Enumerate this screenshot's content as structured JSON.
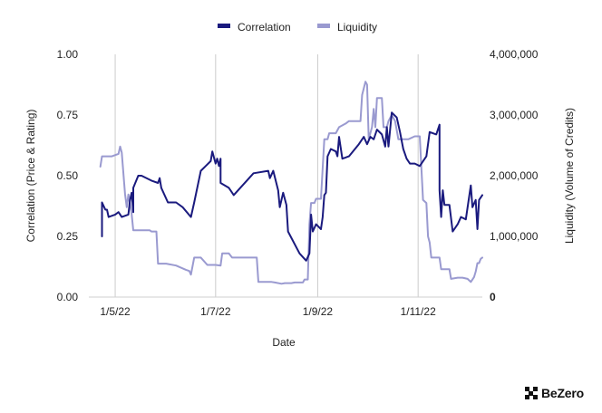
{
  "chart_data": {
    "type": "line",
    "xlabel": "Date",
    "ylabel_left": "Correlation (Price & Rating)",
    "ylabel_right": "Liquidity (Volume of Credits)",
    "xlim": [
      "2022-04-15",
      "2022-12-10"
    ],
    "ylim_left": [
      0,
      1
    ],
    "ylim_right": [
      0,
      4000000
    ],
    "x_ticks": [
      {
        "date": "2022-05-01",
        "label": "1/5/22"
      },
      {
        "date": "2022-07-01",
        "label": "1/7/22"
      },
      {
        "date": "2022-09-01",
        "label": "1/9/22"
      },
      {
        "date": "2022-11-01",
        "label": "1/11/22"
      }
    ],
    "y_ticks_left": [
      {
        "value": 0,
        "label": "0.00"
      },
      {
        "value": 0.25,
        "label": "0.25"
      },
      {
        "value": 0.5,
        "label": "0.50"
      },
      {
        "value": 0.75,
        "label": "0.75"
      },
      {
        "value": 1,
        "label": "1.00"
      }
    ],
    "y_ticks_right": [
      {
        "value": 0,
        "label": "0"
      },
      {
        "value": 1000000,
        "label": "1,000,000"
      },
      {
        "value": 2000000,
        "label": "2,000,000"
      },
      {
        "value": 3000000,
        "label": "3,000,000"
      },
      {
        "value": 4000000,
        "label": "4,000,000"
      }
    ],
    "grid": "vertical",
    "legend_position": "top-center",
    "series": [
      {
        "name": "Correlation",
        "axis": "left",
        "color": "#1a1a7e",
        "points": [
          [
            "2022-04-23",
            0.25
          ],
          [
            "2022-04-23",
            0.39
          ],
          [
            "2022-04-25",
            0.36
          ],
          [
            "2022-04-26",
            0.36
          ],
          [
            "2022-04-27",
            0.33
          ],
          [
            "2022-05-01",
            0.34
          ],
          [
            "2022-05-03",
            0.35
          ],
          [
            "2022-05-05",
            0.33
          ],
          [
            "2022-05-09",
            0.34
          ],
          [
            "2022-05-10",
            0.4
          ],
          [
            "2022-05-11",
            0.43
          ],
          [
            "2022-05-12",
            0.35
          ],
          [
            "2022-05-12",
            0.45
          ],
          [
            "2022-05-15",
            0.5
          ],
          [
            "2022-05-17",
            0.5
          ],
          [
            "2022-05-23",
            0.48
          ],
          [
            "2022-05-27",
            0.47
          ],
          [
            "2022-05-28",
            0.49
          ],
          [
            "2022-05-29",
            0.45
          ],
          [
            "2022-06-02",
            0.39
          ],
          [
            "2022-06-07",
            0.39
          ],
          [
            "2022-06-11",
            0.37
          ],
          [
            "2022-06-16",
            0.33
          ],
          [
            "2022-06-18",
            0.39
          ],
          [
            "2022-06-22",
            0.52
          ],
          [
            "2022-06-25",
            0.54
          ],
          [
            "2022-06-28",
            0.56
          ],
          [
            "2022-06-29",
            0.6
          ],
          [
            "2022-07-01",
            0.55
          ],
          [
            "2022-07-02",
            0.57
          ],
          [
            "2022-07-03",
            0.54
          ],
          [
            "2022-07-04",
            0.57
          ],
          [
            "2022-07-04",
            0.47
          ],
          [
            "2022-07-09",
            0.45
          ],
          [
            "2022-07-12",
            0.42
          ],
          [
            "2022-07-24",
            0.51
          ],
          [
            "2022-08-02",
            0.52
          ],
          [
            "2022-08-03",
            0.49
          ],
          [
            "2022-08-05",
            0.52
          ],
          [
            "2022-08-08",
            0.44
          ],
          [
            "2022-08-09",
            0.37
          ],
          [
            "2022-08-11",
            0.43
          ],
          [
            "2022-08-13",
            0.38
          ],
          [
            "2022-08-14",
            0.27
          ],
          [
            "2022-08-21",
            0.18
          ],
          [
            "2022-08-25",
            0.15
          ],
          [
            "2022-08-27",
            0.18
          ],
          [
            "2022-08-28",
            0.34
          ],
          [
            "2022-08-29",
            0.27
          ],
          [
            "2022-08-31",
            0.3
          ],
          [
            "2022-09-03",
            0.28
          ],
          [
            "2022-09-04",
            0.33
          ],
          [
            "2022-09-05",
            0.42
          ],
          [
            "2022-09-06",
            0.43
          ],
          [
            "2022-09-07",
            0.58
          ],
          [
            "2022-09-09",
            0.61
          ],
          [
            "2022-09-12",
            0.6
          ],
          [
            "2022-09-13",
            0.58
          ],
          [
            "2022-09-14",
            0.66
          ],
          [
            "2022-09-16",
            0.57
          ],
          [
            "2022-09-20",
            0.58
          ],
          [
            "2022-09-26",
            0.63
          ],
          [
            "2022-09-29",
            0.66
          ],
          [
            "2022-10-01",
            0.63
          ],
          [
            "2022-10-03",
            0.66
          ],
          [
            "2022-10-05",
            0.65
          ],
          [
            "2022-10-07",
            0.69
          ],
          [
            "2022-10-10",
            0.67
          ],
          [
            "2022-10-12",
            0.62
          ],
          [
            "2022-10-13",
            0.7
          ],
          [
            "2022-10-14",
            0.62
          ],
          [
            "2022-10-16",
            0.76
          ],
          [
            "2022-10-19",
            0.74
          ],
          [
            "2022-10-21",
            0.68
          ],
          [
            "2022-10-23",
            0.61
          ],
          [
            "2022-10-25",
            0.57
          ],
          [
            "2022-10-27",
            0.55
          ],
          [
            "2022-10-30",
            0.55
          ],
          [
            "2022-11-02",
            0.54
          ],
          [
            "2022-11-06",
            0.58
          ],
          [
            "2022-11-08",
            0.68
          ],
          [
            "2022-11-12",
            0.67
          ],
          [
            "2022-11-14",
            0.71
          ],
          [
            "2022-11-14",
            0.44
          ],
          [
            "2022-11-15",
            0.33
          ],
          [
            "2022-11-16",
            0.44
          ],
          [
            "2022-11-17",
            0.38
          ],
          [
            "2022-11-20",
            0.38
          ],
          [
            "2022-11-22",
            0.27
          ],
          [
            "2022-11-25",
            0.3
          ],
          [
            "2022-11-27",
            0.33
          ],
          [
            "2022-11-30",
            0.32
          ],
          [
            "2022-12-03",
            0.46
          ],
          [
            "2022-12-04",
            0.37
          ],
          [
            "2022-12-06",
            0.4
          ],
          [
            "2022-12-07",
            0.28
          ],
          [
            "2022-12-08",
            0.4
          ],
          [
            "2022-12-10",
            0.42
          ]
        ]
      },
      {
        "name": "Liquidity",
        "axis": "right",
        "color": "#9a9ad0",
        "points": [
          [
            "2022-04-22",
            2150000
          ],
          [
            "2022-04-23",
            2320000
          ],
          [
            "2022-04-29",
            2320000
          ],
          [
            "2022-05-01",
            2340000
          ],
          [
            "2022-05-03",
            2360000
          ],
          [
            "2022-05-04",
            2480000
          ],
          [
            "2022-05-05",
            2380000
          ],
          [
            "2022-05-07",
            1700000
          ],
          [
            "2022-05-08",
            1480000
          ],
          [
            "2022-05-09",
            1690000
          ],
          [
            "2022-05-11",
            1370000
          ],
          [
            "2022-05-12",
            1100000
          ],
          [
            "2022-05-22",
            1100000
          ],
          [
            "2022-05-23",
            1080000
          ],
          [
            "2022-05-26",
            1080000
          ],
          [
            "2022-05-27",
            550000
          ],
          [
            "2022-06-01",
            550000
          ],
          [
            "2022-06-07",
            520000
          ],
          [
            "2022-06-13",
            450000
          ],
          [
            "2022-06-15",
            430000
          ],
          [
            "2022-06-16",
            370000
          ],
          [
            "2022-06-18",
            650000
          ],
          [
            "2022-06-22",
            650000
          ],
          [
            "2022-06-26",
            530000
          ],
          [
            "2022-07-01",
            530000
          ],
          [
            "2022-07-04",
            520000
          ],
          [
            "2022-07-05",
            720000
          ],
          [
            "2022-07-09",
            720000
          ],
          [
            "2022-07-11",
            650000
          ],
          [
            "2022-07-26",
            650000
          ],
          [
            "2022-07-27",
            250000
          ],
          [
            "2022-08-04",
            250000
          ],
          [
            "2022-08-06",
            240000
          ],
          [
            "2022-08-10",
            220000
          ],
          [
            "2022-08-12",
            230000
          ],
          [
            "2022-08-16",
            230000
          ],
          [
            "2022-08-18",
            240000
          ],
          [
            "2022-08-23",
            240000
          ],
          [
            "2022-08-24",
            290000
          ],
          [
            "2022-08-26",
            290000
          ],
          [
            "2022-08-27",
            1200000
          ],
          [
            "2022-08-28",
            1550000
          ],
          [
            "2022-08-30",
            1550000
          ],
          [
            "2022-08-31",
            1620000
          ],
          [
            "2022-09-03",
            1620000
          ],
          [
            "2022-09-05",
            2600000
          ],
          [
            "2022-09-07",
            2600000
          ],
          [
            "2022-09-08",
            2700000
          ],
          [
            "2022-09-12",
            2700000
          ],
          [
            "2022-09-14",
            2800000
          ],
          [
            "2022-09-18",
            2860000
          ],
          [
            "2022-09-20",
            2900000
          ],
          [
            "2022-09-27",
            2900000
          ],
          [
            "2022-09-28",
            3330000
          ],
          [
            "2022-09-30",
            3550000
          ],
          [
            "2022-10-01",
            3500000
          ],
          [
            "2022-10-02",
            2600000
          ],
          [
            "2022-10-04",
            2800000
          ],
          [
            "2022-10-05",
            3100000
          ],
          [
            "2022-10-06",
            2800000
          ],
          [
            "2022-10-07",
            3280000
          ],
          [
            "2022-10-10",
            3280000
          ],
          [
            "2022-10-11",
            2800000
          ],
          [
            "2022-10-13",
            2800000
          ],
          [
            "2022-10-14",
            2900000
          ],
          [
            "2022-10-16",
            3000000
          ],
          [
            "2022-10-18",
            2900000
          ],
          [
            "2022-10-20",
            2600000
          ],
          [
            "2022-10-26",
            2600000
          ],
          [
            "2022-10-30",
            2650000
          ],
          [
            "2022-11-02",
            2650000
          ],
          [
            "2022-11-04",
            1600000
          ],
          [
            "2022-11-06",
            1550000
          ],
          [
            "2022-11-07",
            1000000
          ],
          [
            "2022-11-08",
            900000
          ],
          [
            "2022-11-09",
            650000
          ],
          [
            "2022-11-14",
            650000
          ],
          [
            "2022-11-15",
            460000
          ],
          [
            "2022-11-20",
            460000
          ],
          [
            "2022-11-21",
            300000
          ],
          [
            "2022-11-25",
            320000
          ],
          [
            "2022-11-28",
            320000
          ],
          [
            "2022-12-01",
            300000
          ],
          [
            "2022-12-03",
            250000
          ],
          [
            "2022-12-05",
            330000
          ],
          [
            "2022-12-06",
            420000
          ],
          [
            "2022-12-07",
            560000
          ],
          [
            "2022-12-08",
            560000
          ],
          [
            "2022-12-09",
            630000
          ],
          [
            "2022-12-10",
            650000
          ]
        ]
      }
    ]
  },
  "brand": {
    "name": "BeZero"
  }
}
